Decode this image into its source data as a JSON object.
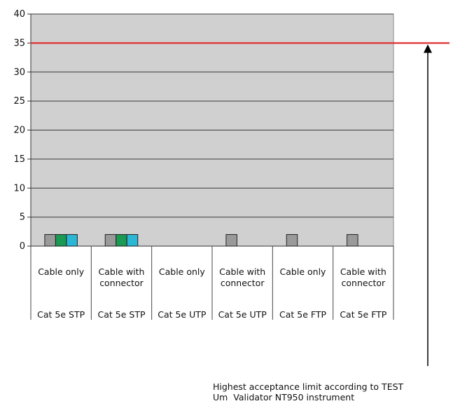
{
  "chart_data": {
    "type": "bar",
    "title": "",
    "xlabel": "",
    "ylabel": "",
    "ylim": [
      0,
      40
    ],
    "yticks": [
      0,
      5,
      10,
      15,
      20,
      25,
      30,
      35,
      40
    ],
    "grid": true,
    "legend": "none",
    "plot_background": "#d0d0d0",
    "categories": [
      {
        "sub": "Cable only",
        "group": "Cat 5e STP"
      },
      {
        "sub": "Cable with connector",
        "group": "Cat 5e STP"
      },
      {
        "sub": "Cable only",
        "group": "Cat 5e UTP"
      },
      {
        "sub": "Cable with connector",
        "group": "Cat 5e UTP"
      },
      {
        "sub": "Cable only",
        "group": "Cat 5e FTP"
      },
      {
        "sub": "Cable with connector",
        "group": "Cat 5e FTP"
      }
    ],
    "series": [
      {
        "color": "#9a9a9a",
        "values": [
          2,
          2,
          0,
          2,
          2,
          2
        ]
      },
      {
        "color": "#1a9a52",
        "values": [
          2,
          2,
          0,
          0,
          0,
          0
        ]
      },
      {
        "color": "#2ab7d6",
        "values": [
          2,
          2,
          0,
          0,
          0,
          0
        ]
      }
    ],
    "reference_line": {
      "value": 35,
      "color": "#e03030"
    },
    "annotation": "Highest acceptance limit according to TEST\nUm  Validator NT950 instrument"
  }
}
